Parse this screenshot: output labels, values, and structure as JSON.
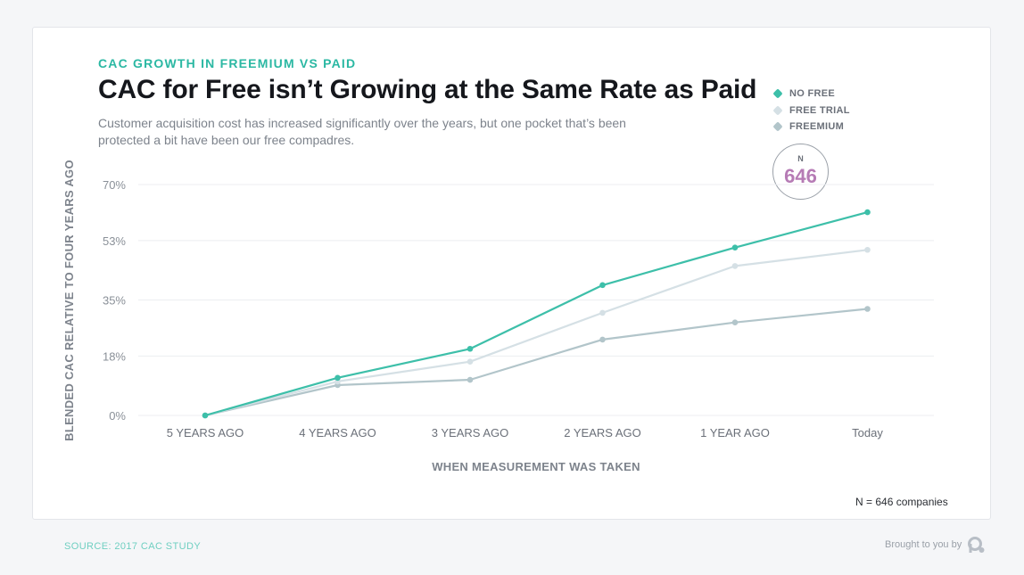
{
  "eyebrow": "CAC GROWTH IN FREEMIUM VS PAID",
  "title": "CAC for Free isn’t Growing at the Same Rate as Paid",
  "subtitle": "Customer acquisition cost has increased significantly over the years, but one pocket that’s been protected a bit have been our free compadres.",
  "badge": {
    "label": "N",
    "value": "646"
  },
  "footnote": "N = 646 companies",
  "source": "SOURCE: 2017 CAC STUDY",
  "brought_by": "Brought to you by",
  "logo_icon": "profitwell-logo-icon",
  "chart_data": {
    "type": "line",
    "xlabel": "WHEN MEASUREMENT WAS TAKEN",
    "ylabel": "BLENDED CAC RELATIVE TO FOUR YEARS AGO",
    "categories": [
      "5 YEARS AGO",
      "4 YEARS AGO",
      "3 YEARS AGO",
      "2 YEARS AGO",
      "1 YEAR AGO",
      "Today"
    ],
    "yticks": [
      0,
      18,
      35,
      53,
      70
    ],
    "ytick_labels": [
      "0%",
      "18%",
      "35%",
      "53%",
      "70%"
    ],
    "ylim": [
      0,
      70
    ],
    "grid": true,
    "legend_position": "top-right",
    "series": [
      {
        "name": "NO FREE",
        "color": "#3dbfa9",
        "values": [
          0,
          11.4,
          20.2,
          39.5,
          50.9,
          61.6
        ]
      },
      {
        "name": "FREE TRIAL",
        "color": "#d5e0e5",
        "values": [
          0,
          10.3,
          16.3,
          31.1,
          45.3,
          50.2
        ]
      },
      {
        "name": "FREEMIUM",
        "color": "#b2c5ca",
        "values": [
          0,
          9.2,
          10.8,
          23.0,
          28.2,
          32.3
        ]
      }
    ]
  }
}
